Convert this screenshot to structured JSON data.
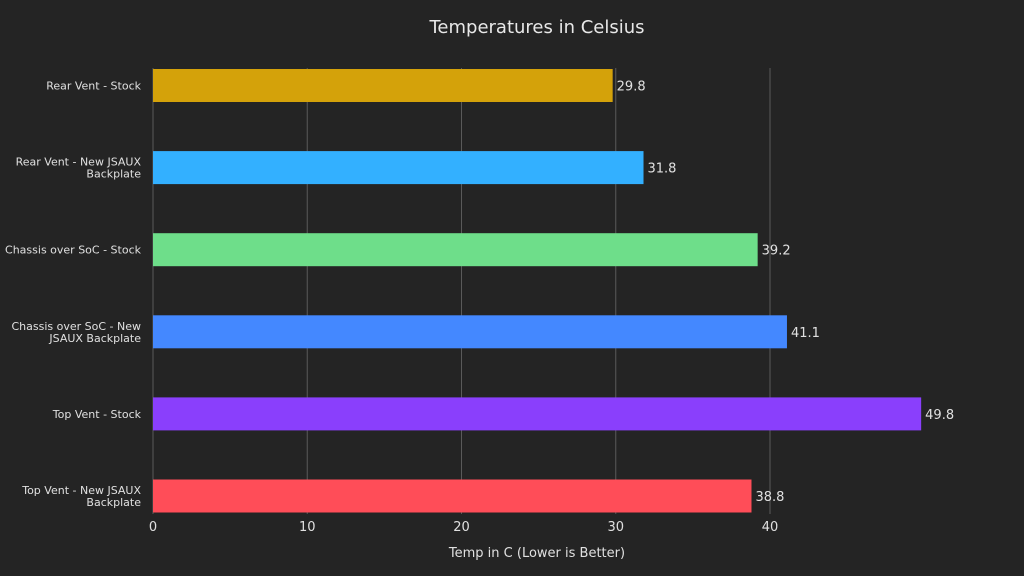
{
  "chart_data": {
    "type": "bar",
    "orientation": "horizontal",
    "title": "Temperatures in Celsius",
    "xlabel": "Temp in C (Lower is Better)",
    "ylabel": "",
    "xlim": [
      0,
      50
    ],
    "xticks": [
      0,
      10,
      20,
      30,
      40
    ],
    "grid": "vertical",
    "categories": [
      "Rear Vent - Stock",
      "Rear Vent - New JSAUX Backplate",
      "Chassis over SoC - Stock",
      "Chassis over SoC - New JSAUX Backplate",
      "Top Vent - Stock",
      "Top Vent - New JSAUX Backplate"
    ],
    "category_label_lines": [
      [
        "Rear Vent - Stock"
      ],
      [
        "Rear Vent - New JSAUX",
        "Backplate"
      ],
      [
        "Chassis over SoC - Stock"
      ],
      [
        "Chassis over SoC - New",
        "JSAUX Backplate"
      ],
      [
        "Top Vent - Stock"
      ],
      [
        "Top Vent - New JSAUX",
        "Backplate"
      ]
    ],
    "values": [
      29.8,
      31.8,
      39.2,
      41.1,
      49.8,
      38.8
    ],
    "value_labels": [
      "29.8",
      "31.8",
      "39.2",
      "41.1",
      "49.8",
      "38.8"
    ],
    "colors": [
      "#d4a20a",
      "#33b0ff",
      "#6ede8a",
      "#4488ff",
      "#8a3ffc",
      "#ff4d58"
    ],
    "background": "#242424"
  }
}
